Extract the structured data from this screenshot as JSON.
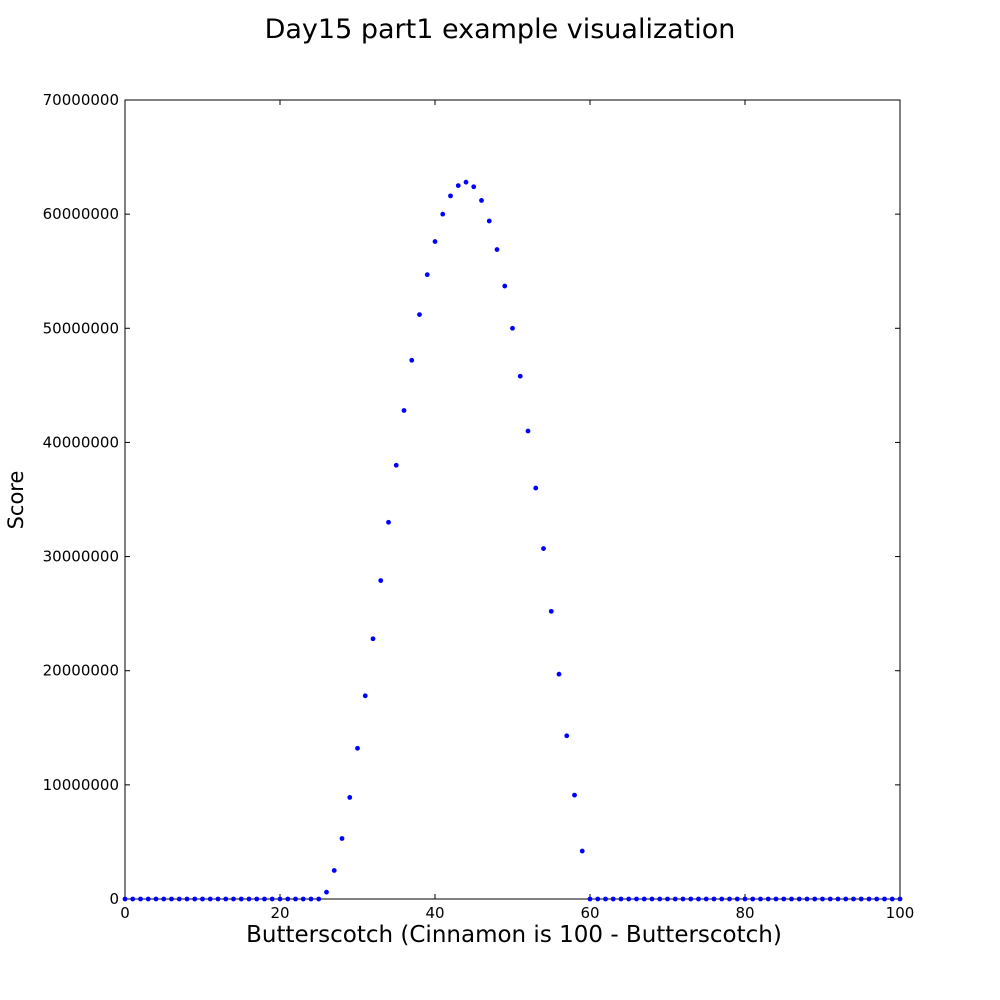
{
  "chart_data": {
    "type": "scatter",
    "title": "Day15 part1 example visualization",
    "xlabel": "Butterscotch (Cinnamon is 100 - Butterscotch)",
    "ylabel": "Score",
    "xlim": [
      0,
      100
    ],
    "ylim": [
      0,
      70000000
    ],
    "x_ticks": [
      "0",
      "20",
      "40",
      "60",
      "80",
      "100"
    ],
    "y_ticks": [
      "0",
      "10000000",
      "20000000",
      "30000000",
      "40000000",
      "50000000",
      "60000000",
      "70000000"
    ],
    "grid": false,
    "legend": "none",
    "marker_color": "#0000ff",
    "x": [
      0,
      1,
      2,
      3,
      4,
      5,
      6,
      7,
      8,
      9,
      10,
      11,
      12,
      13,
      14,
      15,
      16,
      17,
      18,
      19,
      20,
      21,
      22,
      23,
      24,
      25,
      26,
      27,
      28,
      29,
      30,
      31,
      32,
      33,
      34,
      35,
      36,
      37,
      38,
      39,
      40,
      41,
      42,
      43,
      44,
      45,
      46,
      47,
      48,
      49,
      50,
      51,
      52,
      53,
      54,
      55,
      56,
      57,
      58,
      59,
      60,
      61,
      62,
      63,
      64,
      65,
      66,
      67,
      68,
      69,
      70,
      71,
      72,
      73,
      74,
      75,
      76,
      77,
      78,
      79,
      80,
      81,
      82,
      83,
      84,
      85,
      86,
      87,
      88,
      89,
      90,
      91,
      92,
      93,
      94,
      95,
      96,
      97,
      98,
      99,
      100
    ],
    "y": [
      0,
      0,
      0,
      0,
      0,
      0,
      0,
      0,
      0,
      0,
      0,
      0,
      0,
      0,
      0,
      0,
      0,
      0,
      0,
      0,
      0,
      0,
      0,
      0,
      0,
      0,
      600000,
      2500000,
      5300000,
      8900000,
      13200000,
      17800000,
      22800000,
      27900000,
      33000000,
      38000000,
      42800000,
      47200000,
      51200000,
      54700000,
      57600000,
      60000000,
      61600000,
      62500000,
      62800000,
      62400000,
      61200000,
      59400000,
      56900000,
      53700000,
      50000000,
      45800000,
      41000000,
      36000000,
      30700000,
      25200000,
      19700000,
      14300000,
      9100000,
      4200000,
      0,
      0,
      0,
      0,
      0,
      0,
      0,
      0,
      0,
      0,
      0,
      0,
      0,
      0,
      0,
      0,
      0,
      0,
      0,
      0,
      0,
      0,
      0,
      0,
      0,
      0,
      0,
      0,
      0,
      0,
      0,
      0,
      0,
      0,
      0,
      0,
      0,
      0,
      0,
      0,
      0
    ]
  }
}
